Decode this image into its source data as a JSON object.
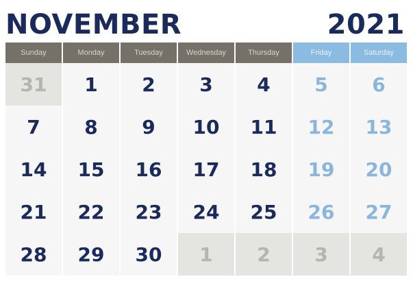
{
  "header": {
    "month": "NOVEMBER",
    "year": "2021"
  },
  "weekdays": [
    "Sunday",
    "Monday",
    "Tuesday",
    "Wednesday",
    "Thursday",
    "Friday",
    "Saturday"
  ],
  "weeks": [
    [
      "31",
      "1",
      "2",
      "3",
      "4",
      "5",
      "6"
    ],
    [
      "7",
      "8",
      "9",
      "10",
      "11",
      "12",
      "13"
    ],
    [
      "14",
      "15",
      "16",
      "17",
      "18",
      "19",
      "20"
    ],
    [
      "21",
      "22",
      "23",
      "24",
      "25",
      "26",
      "27"
    ],
    [
      "28",
      "29",
      "30",
      "1",
      "2",
      "3",
      "4"
    ]
  ],
  "colors": {
    "title": "#1a2a5a",
    "weekday_header": "#757068",
    "weekend_header": "#8bbbe0",
    "weekend_text": "#8bb6dc",
    "adjacent_month_text": "#b5b5b0",
    "adjacent_month_bg": "#e4e4e1"
  }
}
